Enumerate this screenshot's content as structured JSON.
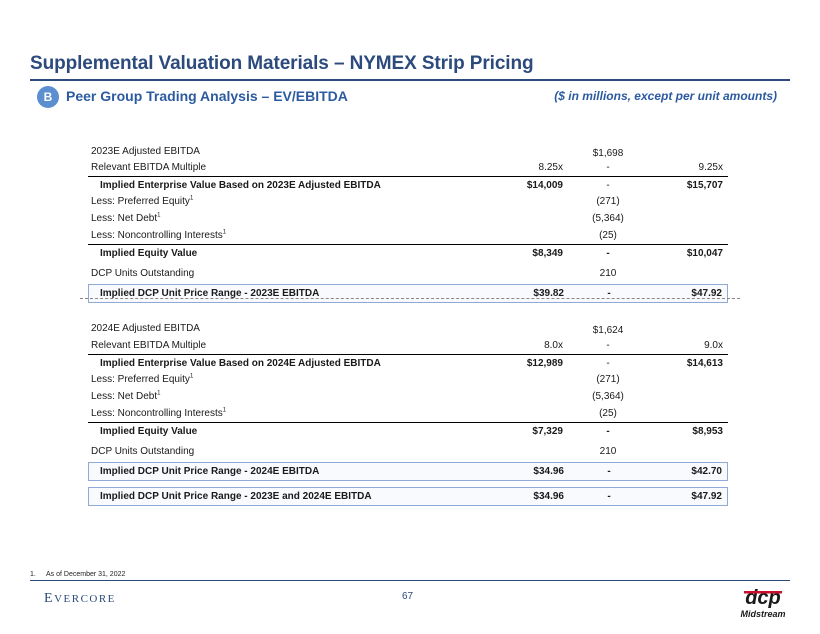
{
  "header": {
    "title": "Supplemental Valuation Materials – NYMEX Strip Pricing",
    "badge": "B",
    "subtitle": "Peer Group Trading Analysis – EV/EBITDA",
    "units_note": "($ in millions, except per unit amounts)"
  },
  "section_2023": {
    "adj_ebitda": {
      "label": "2023E Adjusted EBITDA",
      "mid": "$1,698"
    },
    "multiple": {
      "label": "Relevant EBITDA Multiple",
      "low": "8.25x",
      "mid": "-",
      "high": "9.25x"
    },
    "ev": {
      "label": "Implied Enterprise Value Based on 2023E Adjusted EBITDA",
      "low": "$14,009",
      "mid": "-",
      "high": "$15,707"
    },
    "preferred": {
      "label": "Less: Preferred Equity",
      "sup": "1",
      "mid": "(271)"
    },
    "net_debt": {
      "label": "Less: Net Debt",
      "sup": "1",
      "mid": "(5,364)"
    },
    "nci": {
      "label": "Less: Noncontrolling Interests",
      "sup": "1",
      "mid": "(25)"
    },
    "equity": {
      "label": "Implied Equity Value",
      "low": "$8,349",
      "mid": "-",
      "high": "$10,047"
    },
    "units": {
      "label": "DCP Units Outstanding",
      "mid": "210"
    },
    "price": {
      "label": "Implied DCP Unit Price Range - 2023E EBITDA",
      "low": "$39.82",
      "mid": "-",
      "high": "$47.92"
    }
  },
  "section_2024": {
    "adj_ebitda": {
      "label": "2024E Adjusted EBITDA",
      "mid": "$1,624"
    },
    "multiple": {
      "label": "Relevant EBITDA Multiple",
      "low": "8.0x",
      "mid": "-",
      "high": "9.0x"
    },
    "ev": {
      "label": "Implied Enterprise Value Based on 2024E Adjusted EBITDA",
      "low": "$12,989",
      "mid": "-",
      "high": "$14,613"
    },
    "preferred": {
      "label": "Less: Preferred Equity",
      "sup": "1",
      "mid": "(271)"
    },
    "net_debt": {
      "label": "Less: Net Debt",
      "sup": "1",
      "mid": "(5,364)"
    },
    "nci": {
      "label": "Less: Noncontrolling Interests",
      "sup": "1",
      "mid": "(25)"
    },
    "equity": {
      "label": "Implied Equity Value",
      "low": "$7,329",
      "mid": "-",
      "high": "$8,953"
    },
    "units": {
      "label": "DCP Units Outstanding",
      "mid": "210"
    },
    "price": {
      "label": "Implied DCP Unit Price Range - 2024E EBITDA",
      "low": "$34.96",
      "mid": "-",
      "high": "$42.70"
    }
  },
  "combined": {
    "label": "Implied DCP Unit Price Range - 2023E and 2024E EBITDA",
    "low": "$34.96",
    "mid": "-",
    "high": "$47.92"
  },
  "footer": {
    "footnote_num": "1.",
    "footnote_text": "As of December 31, 2022",
    "evercore_first": "E",
    "evercore_rest": "VERCORE",
    "page_number": "67",
    "logo_top": "dcp",
    "logo_bottom": "Midstream"
  }
}
